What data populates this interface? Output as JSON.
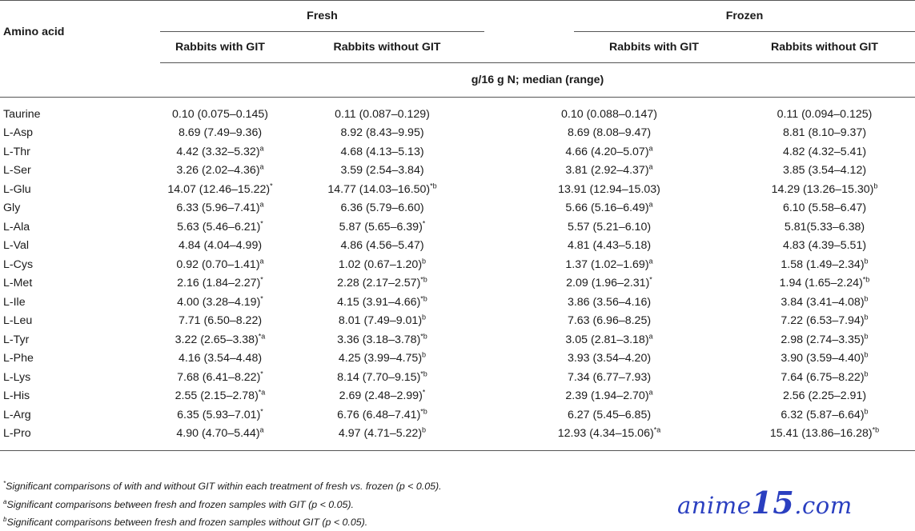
{
  "header": {
    "amino_acid_label": "Amino acid",
    "fresh_label": "Fresh",
    "frozen_label": "Frozen",
    "with_git_label": "Rabbits with GIT",
    "without_git_label": "Rabbits without GIT",
    "unit_label": "g/16 g N; median (range)"
  },
  "rows": [
    {
      "name": "Taurine",
      "fresh_with": "0.10 (0.075–0.145)",
      "fresh_with_sup": "",
      "fresh_without": "0.11 (0.087–0.129)",
      "fresh_without_sup": "",
      "frozen_with": "0.10 (0.088–0.147)",
      "frozen_with_sup": "",
      "frozen_without": "0.11 (0.094–0.125)",
      "frozen_without_sup": ""
    },
    {
      "name": "L-Asp",
      "fresh_with": "8.69 (7.49–9.36)",
      "fresh_with_sup": "",
      "fresh_without": "8.92 (8.43–9.95)",
      "fresh_without_sup": "",
      "frozen_with": "8.69 (8.08–9.47)",
      "frozen_with_sup": "",
      "frozen_without": "8.81 (8.10–9.37)",
      "frozen_without_sup": ""
    },
    {
      "name": "L-Thr",
      "fresh_with": "4.42 (3.32–5.32)",
      "fresh_with_sup": "a",
      "fresh_without": "4.68 (4.13–5.13)",
      "fresh_without_sup": "",
      "frozen_with": "4.66 (4.20–5.07)",
      "frozen_with_sup": "a",
      "frozen_without": "4.82 (4.32–5.41)",
      "frozen_without_sup": ""
    },
    {
      "name": "L-Ser",
      "fresh_with": "3.26 (2.02–4.36)",
      "fresh_with_sup": "a",
      "fresh_without": "3.59 (2.54–3.84)",
      "fresh_without_sup": "",
      "frozen_with": "3.81 (2.92–4.37)",
      "frozen_with_sup": "a",
      "frozen_without": "3.85 (3.54–4.12)",
      "frozen_without_sup": ""
    },
    {
      "name": "L-Glu",
      "fresh_with": "14.07 (12.46–15.22)",
      "fresh_with_sup": "*",
      "fresh_without": "14.77 (14.03–16.50)",
      "fresh_without_sup": "*b",
      "frozen_with": "13.91 (12.94–15.03)",
      "frozen_with_sup": "",
      "frozen_without": "14.29 (13.26–15.30)",
      "frozen_without_sup": "b"
    },
    {
      "name": "Gly",
      "fresh_with": "6.33 (5.96–7.41)",
      "fresh_with_sup": "a",
      "fresh_without": "6.36 (5.79–6.60)",
      "fresh_without_sup": "",
      "frozen_with": "5.66 (5.16–6.49)",
      "frozen_with_sup": "a",
      "frozen_without": "6.10 (5.58–6.47)",
      "frozen_without_sup": ""
    },
    {
      "name": "L-Ala",
      "fresh_with": "5.63 (5.46–6.21)",
      "fresh_with_sup": "*",
      "fresh_without": "5.87 (5.65–6.39)",
      "fresh_without_sup": "*",
      "frozen_with": "5.57 (5.21–6.10)",
      "frozen_with_sup": "",
      "frozen_without": "5.81(5.33–6.38)",
      "frozen_without_sup": ""
    },
    {
      "name": "L-Val",
      "fresh_with": "4.84 (4.04–4.99)",
      "fresh_with_sup": "",
      "fresh_without": "4.86 (4.56–5.47)",
      "fresh_without_sup": "",
      "frozen_with": "4.81 (4.43–5.18)",
      "frozen_with_sup": "",
      "frozen_without": "4.83 (4.39–5.51)",
      "frozen_without_sup": ""
    },
    {
      "name": "L-Cys",
      "fresh_with": "0.92 (0.70–1.41)",
      "fresh_with_sup": "a",
      "fresh_without": "1.02 (0.67–1.20)",
      "fresh_without_sup": "b",
      "frozen_with": "1.37 (1.02–1.69)",
      "frozen_with_sup": "a",
      "frozen_without": "1.58 (1.49–2.34)",
      "frozen_without_sup": "b"
    },
    {
      "name": "L-Met",
      "fresh_with": "2.16 (1.84–2.27)",
      "fresh_with_sup": "*",
      "fresh_without": "2.28 (2.17–2.57)",
      "fresh_without_sup": "*b",
      "frozen_with": "2.09 (1.96–2.31)",
      "frozen_with_sup": "*",
      "frozen_without": "1.94 (1.65–2.24)",
      "frozen_without_sup": "*b"
    },
    {
      "name": "L-Ile",
      "fresh_with": "4.00 (3.28–4.19)",
      "fresh_with_sup": "*",
      "fresh_without": "4.15 (3.91–4.66)",
      "fresh_without_sup": "*b",
      "frozen_with": "3.86 (3.56–4.16)",
      "frozen_with_sup": "",
      "frozen_without": "3.84 (3.41–4.08)",
      "frozen_without_sup": "b"
    },
    {
      "name": "L-Leu",
      "fresh_with": "7.71 (6.50–8.22)",
      "fresh_with_sup": "",
      "fresh_without": "8.01 (7.49–9.01)",
      "fresh_without_sup": "b",
      "frozen_with": "7.63 (6.96–8.25)",
      "frozen_with_sup": "",
      "frozen_without": "7.22 (6.53–7.94)",
      "frozen_without_sup": "b"
    },
    {
      "name": "L-Tyr",
      "fresh_with": "3.22 (2.65–3.38)",
      "fresh_with_sup": "*a",
      "fresh_without": "3.36 (3.18–3.78)",
      "fresh_without_sup": "*b",
      "frozen_with": "3.05 (2.81–3.18)",
      "frozen_with_sup": "a",
      "frozen_without": "2.98 (2.74–3.35)",
      "frozen_without_sup": "b"
    },
    {
      "name": "L-Phe",
      "fresh_with": "4.16 (3.54–4.48)",
      "fresh_with_sup": "",
      "fresh_without": "4.25 (3.99–4.75)",
      "fresh_without_sup": "b",
      "frozen_with": "3.93 (3.54–4.20)",
      "frozen_with_sup": "",
      "frozen_without": "3.90 (3.59–4.40)",
      "frozen_without_sup": "b"
    },
    {
      "name": "L-Lys",
      "fresh_with": "7.68 (6.41–8.22)",
      "fresh_with_sup": "*",
      "fresh_without": "8.14 (7.70–9.15)",
      "fresh_without_sup": "*b",
      "frozen_with": "7.34 (6.77–7.93)",
      "frozen_with_sup": "",
      "frozen_without": "7.64 (6.75–8.22)",
      "frozen_without_sup": "b"
    },
    {
      "name": "L-His",
      "fresh_with": "2.55 (2.15–2.78)",
      "fresh_with_sup": "*a",
      "fresh_without": "2.69 (2.48–2.99)",
      "fresh_without_sup": "*",
      "frozen_with": "2.39 (1.94–2.70)",
      "frozen_with_sup": "a",
      "frozen_without": "2.56 (2.25–2.91)",
      "frozen_without_sup": ""
    },
    {
      "name": "L-Arg",
      "fresh_with": "6.35 (5.93–7.01)",
      "fresh_with_sup": "*",
      "fresh_without": "6.76 (6.48–7.41)",
      "fresh_without_sup": "*b",
      "frozen_with": "6.27 (5.45–6.85)",
      "frozen_with_sup": "",
      "frozen_without": "6.32 (5.87–6.64)",
      "frozen_without_sup": "b"
    },
    {
      "name": "L-Pro",
      "fresh_with": "4.90 (4.70–5.44)",
      "fresh_with_sup": "a",
      "fresh_without": "4.97 (4.71–5.22)",
      "fresh_without_sup": "b",
      "frozen_with": "12.93 (4.34–15.06)",
      "frozen_with_sup": "*a",
      "frozen_without": "15.41 (13.86–16.28)",
      "frozen_without_sup": "*b"
    }
  ],
  "footnotes": [
    {
      "mark": "*",
      "text": "Significant comparisons of with and without GIT within each treatment of fresh vs. frozen (p < 0.05)."
    },
    {
      "mark": "a",
      "text": "Significant comparisons between fresh and frozen samples with GIT (p < 0.05)."
    },
    {
      "mark": "b",
      "text": "Significant comparisons between fresh and frozen samples without GIT (p < 0.05)."
    }
  ],
  "watermark": {
    "part1": "anime",
    "part2": "15",
    "part3": ".com"
  }
}
